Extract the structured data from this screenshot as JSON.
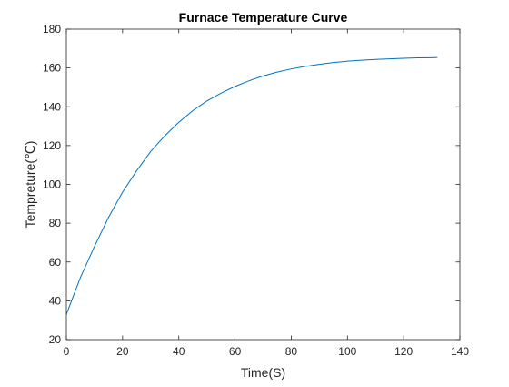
{
  "chart_data": {
    "type": "line",
    "title": "Furnace Temperature Curve",
    "xlabel": "Time(S)",
    "ylabel": "Tempreture(℃)",
    "xlim": [
      0,
      140
    ],
    "ylim": [
      20,
      180
    ],
    "xticks": [
      0,
      20,
      40,
      60,
      80,
      100,
      120,
      140
    ],
    "yticks": [
      20,
      40,
      60,
      80,
      100,
      120,
      140,
      160,
      180
    ],
    "grid": false,
    "box": true,
    "series": [
      {
        "color": "#0072BD",
        "x": [
          0,
          5,
          10,
          15,
          20,
          25,
          30,
          35,
          40,
          45,
          50,
          55,
          60,
          65,
          70,
          75,
          80,
          85,
          90,
          95,
          100,
          105,
          110,
          115,
          120,
          125,
          130,
          132
        ],
        "y": [
          33,
          52,
          68,
          83,
          96,
          107,
          117,
          125,
          132,
          138,
          143,
          147,
          150.5,
          153.4,
          155.9,
          157.9,
          159.5,
          160.8,
          161.9,
          162.8,
          163.5,
          164.0,
          164.4,
          164.7,
          165.0,
          165.2,
          165.3,
          165.4
        ]
      }
    ]
  }
}
